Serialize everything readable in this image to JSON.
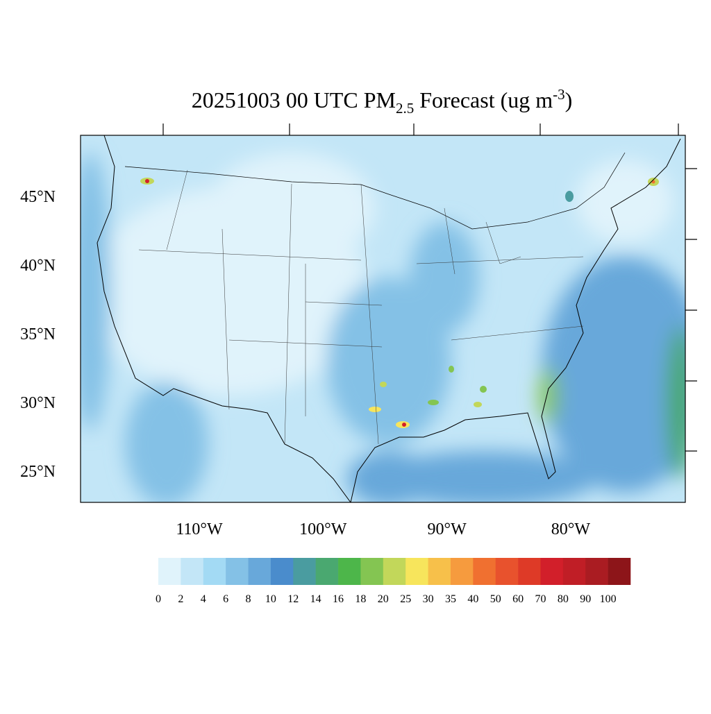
{
  "title": {
    "date_part": "20251003 00 UTC PM",
    "subscript": "2.5",
    "middle": " Forecast (ug m",
    "superscript": "-3",
    "end": ")"
  },
  "map": {
    "lat_ticks": [
      {
        "value": 45,
        "label": "45°N"
      },
      {
        "value": 40,
        "label": "40°N"
      },
      {
        "value": 35,
        "label": "35°N"
      },
      {
        "value": 30,
        "label": "30°N"
      },
      {
        "value": 25,
        "label": "25°N"
      }
    ],
    "lon_ticks": [
      {
        "value": -110,
        "label": "110°W"
      },
      {
        "value": -100,
        "label": "100°W"
      },
      {
        "value": -90,
        "label": "90°W"
      },
      {
        "value": -80,
        "label": "80°W"
      }
    ]
  },
  "colorbar": {
    "levels": [
      0,
      2,
      4,
      6,
      8,
      10,
      12,
      14,
      16,
      18,
      20,
      25,
      30,
      35,
      40,
      50,
      60,
      70,
      80,
      90,
      100
    ],
    "colors": [
      "#e0f3fb",
      "#c3e6f7",
      "#a3daf4",
      "#84c1e6",
      "#68a8da",
      "#4a8ccc",
      "#4a9ca0",
      "#4aa870",
      "#4db64a",
      "#84c552",
      "#c2d75a",
      "#f7e55c",
      "#f7c04a",
      "#f69b3e",
      "#f07030",
      "#e8522d",
      "#de3a27",
      "#d21f2a",
      "#c01e26",
      "#aa1c22",
      "#8d1519"
    ]
  }
}
